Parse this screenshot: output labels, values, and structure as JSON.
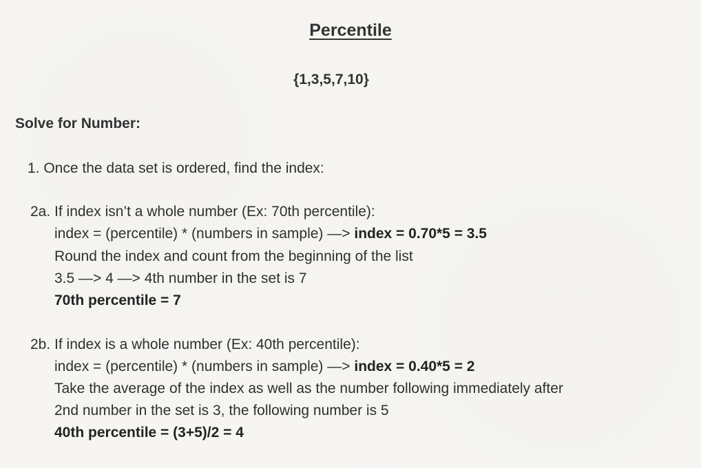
{
  "title": "Percentile",
  "dataset": "{1,3,5,7,10}",
  "heading": "Solve for Number:",
  "step1": "1. Once the data set is ordered, find the index:",
  "case_a": {
    "head": "2a. If index isn’t a whole number (Ex: 70th percentile):",
    "formula_prefix": "index = (percentile) * (numbers in sample) —> ",
    "formula_result": "index = 0.70*5 = 3.5",
    "instruction": "Round the index and count from the beginning of the list",
    "example": "3.5 —> 4 —> 4th number in the set is 7",
    "answer": "70th percentile = 7"
  },
  "case_b": {
    "head": "2b. If index is a whole number (Ex: 40th percentile):",
    "formula_prefix": "index = (percentile) * (numbers in sample) —> ",
    "formula_result": "index = 0.40*5 = 2",
    "instruction": "Take the average of the index as well as the number following immediately after",
    "example": "2nd number in the set is 3, the following number is 5",
    "answer": "40th percentile = (3+5)/2 = 4"
  }
}
